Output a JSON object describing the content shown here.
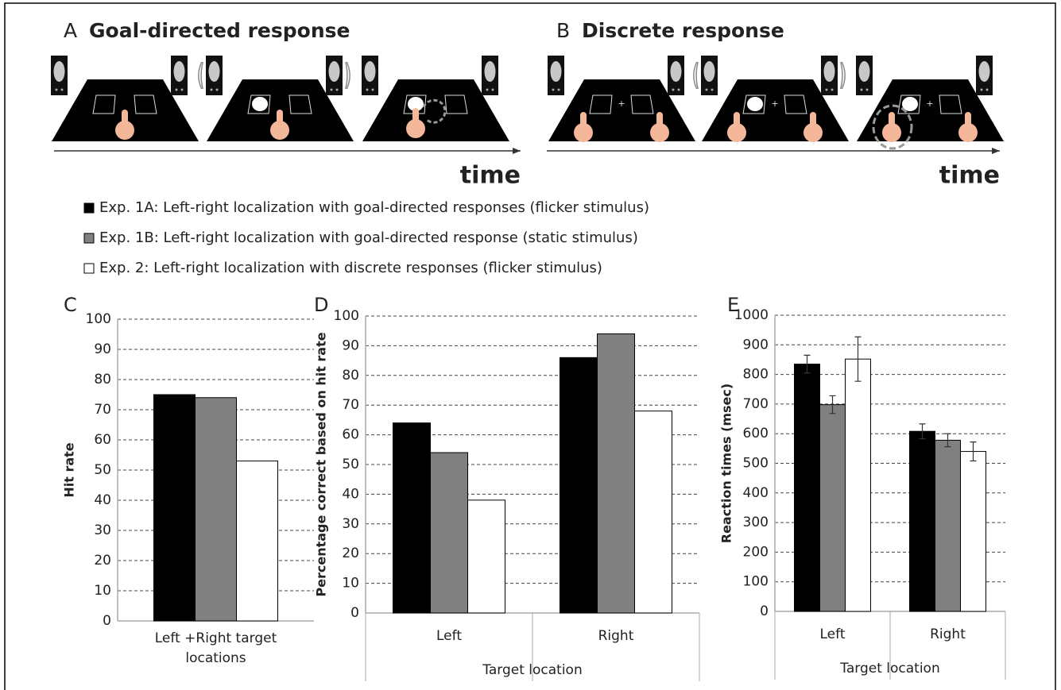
{
  "panels": [
    {
      "label": "A",
      "title": "Goal-directed response",
      "time_label": "time"
    },
    {
      "label": "B",
      "title": "Discrete response",
      "time_label": "time"
    }
  ],
  "chart_data": [
    {
      "type": "bar",
      "panel_label": "C",
      "ylabel": "Hit rate",
      "categories": [
        "Left +Right target locations"
      ],
      "series": [
        {
          "name": "Exp. 1A: Left-right localization with goal-directed responses (flicker stimulus)",
          "color": "#000000",
          "values": [
            75
          ]
        },
        {
          "name": "Exp. 1B: Left-right localization with goal-directed response (static stimulus)",
          "color": "#808080",
          "values": [
            74
          ]
        },
        {
          "name": "Exp. 2: Left-right localization with discrete responses (flicker stimulus)",
          "color": "#ffffff",
          "values": [
            53
          ]
        }
      ],
      "ylim": [
        0,
        100
      ],
      "yticks": [
        0,
        10,
        20,
        30,
        40,
        50,
        60,
        70,
        80,
        90,
        100
      ],
      "grid": true
    },
    {
      "type": "bar",
      "panel_label": "D",
      "ylabel": "Percentage correct based on hit rate",
      "xlabel": "Target location",
      "categories": [
        "Left",
        "Right"
      ],
      "series": [
        {
          "color": "#000000",
          "values": [
            64,
            86
          ]
        },
        {
          "color": "#808080",
          "values": [
            54,
            94
          ]
        },
        {
          "color": "#ffffff",
          "values": [
            38,
            68
          ]
        }
      ],
      "ylim": [
        0,
        100
      ],
      "yticks": [
        0,
        10,
        20,
        30,
        40,
        50,
        60,
        70,
        80,
        90,
        100
      ],
      "grid": true
    },
    {
      "type": "bar",
      "panel_label": "E",
      "ylabel": "Reaction times (msec)",
      "xlabel": "Target location",
      "categories": [
        "Left",
        "Right"
      ],
      "series": [
        {
          "color": "#000000",
          "values": [
            835,
            608
          ],
          "errors": [
            30,
            25
          ]
        },
        {
          "color": "#808080",
          "values": [
            698,
            578
          ],
          "errors": [
            30,
            22
          ]
        },
        {
          "color": "#ffffff",
          "values": [
            852,
            540
          ],
          "errors": [
            75,
            32
          ]
        }
      ],
      "ylim": [
        0,
        1000
      ],
      "yticks": [
        0,
        100,
        200,
        300,
        400,
        500,
        600,
        700,
        800,
        900,
        1000
      ],
      "grid": true
    }
  ]
}
